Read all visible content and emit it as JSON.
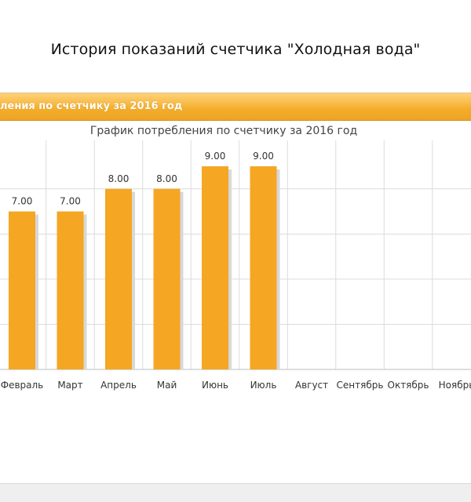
{
  "page": {
    "title": "История показаний счетчика \"Холодная вода\""
  },
  "panel": {
    "header_label": "ления по счетчику за 2016 год"
  },
  "chart_data": {
    "type": "bar",
    "title": "График потребления по счетчику за 2016 год",
    "categories": [
      "Февраль",
      "Март",
      "Апрель",
      "Май",
      "Июнь",
      "Июль",
      "Август",
      "Сентябрь",
      "Октябрь",
      "Ноябрь"
    ],
    "values": [
      7.0,
      7.0,
      8.0,
      8.0,
      9.0,
      9.0,
      null,
      null,
      null,
      null
    ],
    "data_labels": [
      "7.00",
      "7.00",
      "8.00",
      "8.00",
      "9.00",
      "9.00",
      "",
      "",
      "",
      ""
    ],
    "xlabel": "",
    "ylabel": "",
    "ylim": [
      0,
      10
    ],
    "grid": true,
    "bar_color": "#f5a623",
    "bar_shadow_color": "#d8d8d8",
    "grid_color": "#dcdcdc"
  }
}
